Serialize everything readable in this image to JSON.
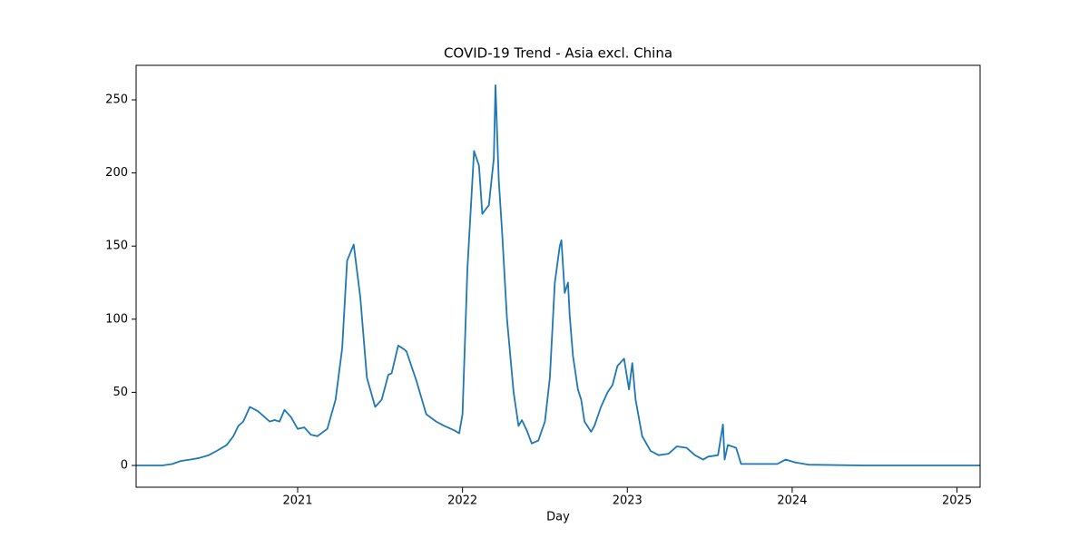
{
  "chart_data": {
    "type": "line",
    "title": "COVID-19 Trend - Asia excl. China",
    "xlabel": "Day",
    "x": [
      2020.02,
      2020.18,
      2020.24,
      2020.29,
      2020.35,
      2020.4,
      2020.46,
      2020.51,
      2020.57,
      2020.61,
      2020.64,
      2020.67,
      2020.71,
      2020.76,
      2020.83,
      2020.86,
      2020.89,
      2020.92,
      2020.96,
      2021.0,
      2021.04,
      2021.08,
      2021.12,
      2021.18,
      2021.23,
      2021.27,
      2021.3,
      2021.34,
      2021.38,
      2021.42,
      2021.47,
      2021.51,
      2021.55,
      2021.57,
      2021.61,
      2021.65,
      2021.66,
      2021.72,
      2021.78,
      2021.84,
      2021.89,
      2021.95,
      2021.98,
      2022.0,
      2022.03,
      2022.07,
      2022.1,
      2022.12,
      2022.16,
      2022.19,
      2022.2,
      2022.22,
      2022.24,
      2022.27,
      2022.31,
      2022.34,
      2022.36,
      2022.39,
      2022.42,
      2022.46,
      2022.5,
      2022.53,
      2022.56,
      2022.59,
      2022.6,
      2022.62,
      2022.64,
      2022.65,
      2022.67,
      2022.7,
      2022.72,
      2022.74,
      2022.78,
      2022.8,
      2022.84,
      2022.88,
      2022.91,
      2022.94,
      2022.98,
      2023.01,
      2023.03,
      2023.05,
      2023.09,
      2023.14,
      2023.19,
      2023.25,
      2023.3,
      2023.36,
      2023.41,
      2023.46,
      2023.49,
      2023.55,
      2023.58,
      2023.59,
      2023.61,
      2023.66,
      2023.69,
      2023.77,
      2023.91,
      2023.96,
      2024.02,
      2024.1,
      2024.43,
      2025.14
    ],
    "series": [
      {
        "name": "Asia excl. China",
        "color": "#1f77b4",
        "values": [
          0,
          0,
          1,
          3,
          4,
          5,
          7,
          10,
          14,
          20,
          27,
          30,
          40,
          37,
          30,
          31,
          30,
          38,
          33,
          25,
          26,
          21,
          20,
          25,
          45,
          80,
          140,
          151,
          115,
          60,
          40,
          45,
          62,
          63,
          82,
          79,
          78,
          58,
          35,
          30,
          27,
          24,
          22,
          35,
          135,
          215,
          205,
          172,
          178,
          210,
          260,
          195,
          160,
          100,
          50,
          27,
          31,
          24,
          15,
          17,
          30,
          60,
          125,
          150,
          154,
          118,
          125,
          103,
          75,
          52,
          45,
          30,
          23,
          27,
          40,
          50,
          55,
          68,
          73,
          52,
          70,
          45,
          20,
          10,
          7,
          8,
          13,
          12,
          7,
          4,
          6,
          7,
          28,
          4,
          14,
          12,
          1,
          1,
          1,
          4,
          2,
          0.5,
          0,
          0
        ]
      }
    ],
    "xlim": [
      2020.02,
      2025.14
    ],
    "xticks": [
      2021,
      2022,
      2023,
      2024,
      2025
    ],
    "ylim": [
      -14.9,
      273.6
    ],
    "yticks": [
      0,
      50,
      100,
      150,
      200,
      250
    ],
    "grid": false
  }
}
